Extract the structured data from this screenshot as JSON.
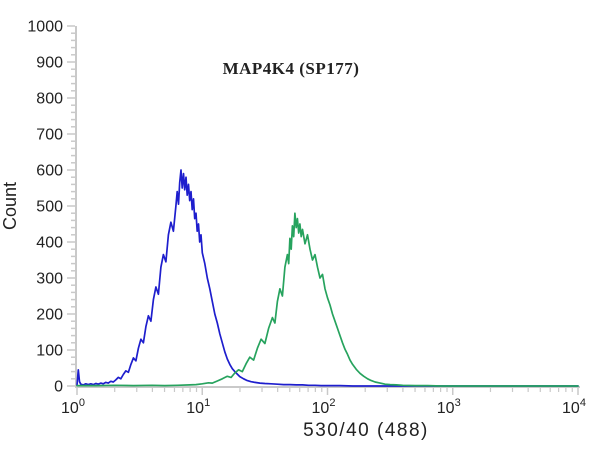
{
  "chart_data": {
    "type": "line",
    "subtype": "flow-cytometry-histogram-overlay",
    "title": "MAP4K4 (SP177)",
    "xlabel": "530/40 (488)",
    "ylabel": "Count",
    "x_scale": "log10",
    "xlim": [
      1,
      10000
    ],
    "xlim_log": [
      0,
      4
    ],
    "ylim": [
      0,
      1000
    ],
    "y_major_step": 100,
    "y_minor_step": 20,
    "x_decade_exponents": [
      0,
      1,
      2,
      3,
      4
    ],
    "x_minor_mantissas": [
      2,
      3,
      4,
      5,
      6,
      7,
      8,
      9
    ],
    "grid": false,
    "legend": "none",
    "axis_color": "#c9c9c9",
    "text_color": "#222222",
    "background_color": "#ffffff",
    "series": [
      {
        "name": "blue-series",
        "color": "#1e1ecd",
        "peak_x_approx": 6.8,
        "peak_count_approx": 600,
        "points_logx_count": [
          [
            0.0,
            2
          ],
          [
            0.01,
            45
          ],
          [
            0.02,
            12
          ],
          [
            0.03,
            5
          ],
          [
            0.05,
            3
          ],
          [
            0.07,
            6
          ],
          [
            0.09,
            4
          ],
          [
            0.11,
            6
          ],
          [
            0.13,
            4
          ],
          [
            0.15,
            7
          ],
          [
            0.17,
            5
          ],
          [
            0.19,
            8
          ],
          [
            0.21,
            6
          ],
          [
            0.23,
            10
          ],
          [
            0.25,
            8
          ],
          [
            0.27,
            13
          ],
          [
            0.29,
            11
          ],
          [
            0.31,
            17
          ],
          [
            0.33,
            24
          ],
          [
            0.35,
            20
          ],
          [
            0.37,
            32
          ],
          [
            0.39,
            42
          ],
          [
            0.41,
            38
          ],
          [
            0.43,
            60
          ],
          [
            0.45,
            78
          ],
          [
            0.47,
            70
          ],
          [
            0.49,
            105
          ],
          [
            0.51,
            130
          ],
          [
            0.53,
            120
          ],
          [
            0.55,
            165
          ],
          [
            0.57,
            195
          ],
          [
            0.59,
            180
          ],
          [
            0.61,
            240
          ],
          [
            0.63,
            275
          ],
          [
            0.65,
            255
          ],
          [
            0.67,
            330
          ],
          [
            0.69,
            365
          ],
          [
            0.71,
            345
          ],
          [
            0.73,
            420
          ],
          [
            0.75,
            455
          ],
          [
            0.77,
            430
          ],
          [
            0.79,
            500
          ],
          [
            0.8,
            540
          ],
          [
            0.81,
            505
          ],
          [
            0.82,
            565
          ],
          [
            0.83,
            600
          ],
          [
            0.84,
            550
          ],
          [
            0.85,
            590
          ],
          [
            0.86,
            545
          ],
          [
            0.87,
            580
          ],
          [
            0.88,
            530
          ],
          [
            0.89,
            560
          ],
          [
            0.9,
            515
          ],
          [
            0.91,
            540
          ],
          [
            0.92,
            490
          ],
          [
            0.93,
            520
          ],
          [
            0.94,
            465
          ],
          [
            0.95,
            480
          ],
          [
            0.96,
            430
          ],
          [
            0.97,
            450
          ],
          [
            0.98,
            400
          ],
          [
            0.99,
            420
          ],
          [
            1.0,
            370
          ],
          [
            1.02,
            340
          ],
          [
            1.04,
            300
          ],
          [
            1.06,
            270
          ],
          [
            1.08,
            235
          ],
          [
            1.1,
            200
          ],
          [
            1.12,
            175
          ],
          [
            1.14,
            145
          ],
          [
            1.16,
            120
          ],
          [
            1.18,
            95
          ],
          [
            1.2,
            75
          ],
          [
            1.22,
            60
          ],
          [
            1.24,
            48
          ],
          [
            1.26,
            40
          ],
          [
            1.28,
            33
          ],
          [
            1.3,
            26
          ],
          [
            1.33,
            20
          ],
          [
            1.36,
            15
          ],
          [
            1.39,
            12
          ],
          [
            1.42,
            10
          ],
          [
            1.46,
            8
          ],
          [
            1.5,
            7
          ],
          [
            1.55,
            6
          ],
          [
            1.6,
            5
          ],
          [
            1.65,
            4
          ],
          [
            1.7,
            4
          ],
          [
            1.75,
            3
          ],
          [
            1.8,
            3
          ],
          [
            1.85,
            2
          ],
          [
            1.9,
            2
          ],
          [
            1.95,
            1
          ],
          [
            2.0,
            1
          ],
          [
            2.1,
            1
          ],
          [
            2.2,
            0
          ],
          [
            2.4,
            0
          ],
          [
            2.7,
            0
          ],
          [
            3.0,
            0
          ],
          [
            3.5,
            0
          ],
          [
            4.0,
            0
          ]
        ]
      },
      {
        "name": "green-series",
        "color": "#27a35e",
        "peak_x_approx": 50,
        "peak_count_approx": 480,
        "points_logx_count": [
          [
            0.0,
            1
          ],
          [
            0.15,
            1
          ],
          [
            0.3,
            2
          ],
          [
            0.45,
            1
          ],
          [
            0.6,
            2
          ],
          [
            0.7,
            1
          ],
          [
            0.8,
            2
          ],
          [
            0.9,
            3
          ],
          [
            0.95,
            4
          ],
          [
            1.0,
            6
          ],
          [
            1.05,
            9
          ],
          [
            1.08,
            8
          ],
          [
            1.12,
            14
          ],
          [
            1.16,
            20
          ],
          [
            1.2,
            27
          ],
          [
            1.23,
            24
          ],
          [
            1.26,
            36
          ],
          [
            1.29,
            45
          ],
          [
            1.32,
            40
          ],
          [
            1.35,
            62
          ],
          [
            1.38,
            80
          ],
          [
            1.41,
            72
          ],
          [
            1.44,
            105
          ],
          [
            1.47,
            130
          ],
          [
            1.5,
            118
          ],
          [
            1.53,
            160
          ],
          [
            1.56,
            190
          ],
          [
            1.58,
            175
          ],
          [
            1.6,
            235
          ],
          [
            1.62,
            270
          ],
          [
            1.64,
            250
          ],
          [
            1.66,
            330
          ],
          [
            1.68,
            365
          ],
          [
            1.69,
            340
          ],
          [
            1.7,
            410
          ],
          [
            1.71,
            380
          ],
          [
            1.72,
            445
          ],
          [
            1.73,
            415
          ],
          [
            1.74,
            480
          ],
          [
            1.75,
            440
          ],
          [
            1.76,
            465
          ],
          [
            1.77,
            425
          ],
          [
            1.78,
            450
          ],
          [
            1.79,
            415
          ],
          [
            1.8,
            435
          ],
          [
            1.82,
            395
          ],
          [
            1.84,
            420
          ],
          [
            1.86,
            380
          ],
          [
            1.88,
            350
          ],
          [
            1.9,
            365
          ],
          [
            1.92,
            330
          ],
          [
            1.94,
            300
          ],
          [
            1.96,
            310
          ],
          [
            1.98,
            270
          ],
          [
            2.0,
            245
          ],
          [
            2.02,
            225
          ],
          [
            2.04,
            200
          ],
          [
            2.06,
            180
          ],
          [
            2.08,
            160
          ],
          [
            2.1,
            140
          ],
          [
            2.12,
            120
          ],
          [
            2.14,
            102
          ],
          [
            2.16,
            88
          ],
          [
            2.18,
            72
          ],
          [
            2.2,
            60
          ],
          [
            2.23,
            46
          ],
          [
            2.26,
            35
          ],
          [
            2.29,
            27
          ],
          [
            2.32,
            20
          ],
          [
            2.35,
            15
          ],
          [
            2.38,
            11
          ],
          [
            2.42,
            8
          ],
          [
            2.46,
            5
          ],
          [
            2.5,
            4
          ],
          [
            2.55,
            3
          ],
          [
            2.6,
            2
          ],
          [
            2.7,
            1
          ],
          [
            2.8,
            1
          ],
          [
            2.9,
            0
          ],
          [
            3.2,
            0
          ],
          [
            3.6,
            0
          ],
          [
            4.0,
            0
          ]
        ]
      }
    ]
  }
}
